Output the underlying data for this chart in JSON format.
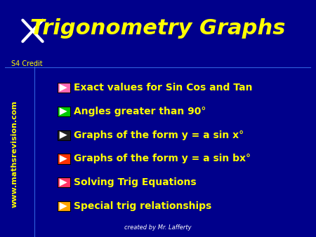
{
  "background_color": "#00008B",
  "title": "Trigonometry Graphs",
  "title_color": "#FFFF00",
  "title_fontsize": 22,
  "subtitle_label": "S4 Credit",
  "subtitle_color": "#FFFF00",
  "subtitle_fontsize": 7,
  "watermark": "www.mathsrevision.com",
  "watermark_color": "#FFFF00",
  "credit": "created by Mr. Lafferty",
  "credit_color": "#FFFFFF",
  "items": [
    {
      "text": "Exact values for Sin Cos and Tan",
      "bullet_color": "#FF69B4",
      "active": true
    },
    {
      "text": "Angles greater than 90°",
      "bullet_color": "#00CC00",
      "active": true
    },
    {
      "text": "Graphs of the form y = a sin x°",
      "bullet_color": "#222222",
      "active": false
    },
    {
      "text": "Graphs of the form y = a sin bx°",
      "bullet_color": "#FF3300",
      "active": false
    },
    {
      "text": "Solving Trig Equations",
      "bullet_color": "#FF3366",
      "active": false
    },
    {
      "text": "Special trig relationships",
      "bullet_color": "#FFA500",
      "active": false
    }
  ],
  "text_color": "#FFFF00",
  "text_fontsize": 10,
  "active_items": [
    0,
    1
  ]
}
